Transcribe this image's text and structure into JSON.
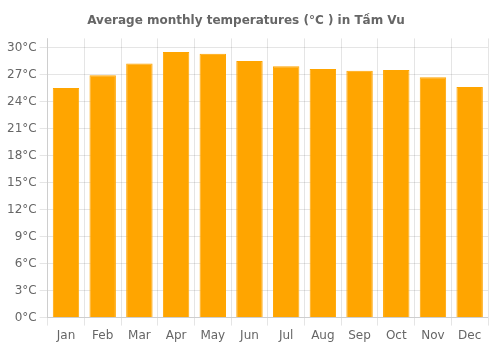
{
  "chart_data": {
    "type": "bar",
    "title": "Average monthly temperatures (°C ) in Tầm Vu",
    "categories": [
      "Jan",
      "Feb",
      "Mar",
      "Apr",
      "May",
      "Jun",
      "Jul",
      "Aug",
      "Sep",
      "Oct",
      "Nov",
      "Dec"
    ],
    "values": [
      25.5,
      26.9,
      28.2,
      29.5,
      29.3,
      28.5,
      27.9,
      27.6,
      27.4,
      27.5,
      26.7,
      25.6
    ],
    "color": "#FFA500",
    "ylim": [
      0,
      31
    ],
    "yticks": [
      {
        "value": 0,
        "label": "0°C"
      },
      {
        "value": 3,
        "label": "3°C"
      },
      {
        "value": 6,
        "label": "6°C"
      },
      {
        "value": 9,
        "label": "9°C"
      },
      {
        "value": 12,
        "label": "12°C"
      },
      {
        "value": 15,
        "label": "15°C"
      },
      {
        "value": 18,
        "label": "18°C"
      },
      {
        "value": 21,
        "label": "21°C"
      },
      {
        "value": 24,
        "label": "24°C"
      },
      {
        "value": 27,
        "label": "27°C"
      },
      {
        "value": 30,
        "label": "30°C"
      }
    ],
    "grid": true
  }
}
